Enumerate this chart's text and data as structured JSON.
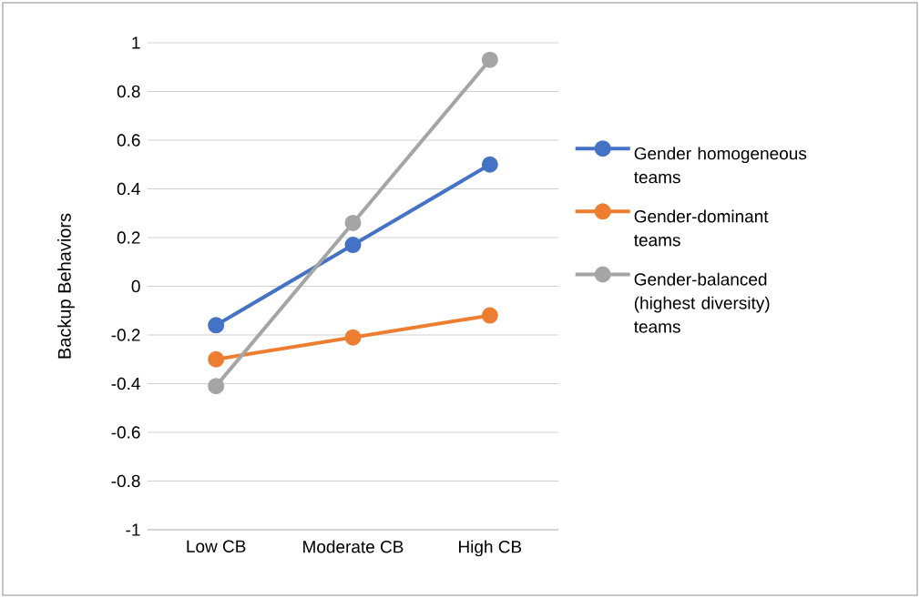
{
  "chart_data": {
    "type": "line",
    "ylabel": "Backup Behaviors",
    "categories": [
      "Low CB",
      "Moderate CB",
      "High CB"
    ],
    "series": [
      {
        "name": "Gender homogeneous teams",
        "color": "#4472c4",
        "values": [
          -0.16,
          0.17,
          0.5
        ]
      },
      {
        "name": "Gender-dominant teams",
        "color": "#ed7d31",
        "values": [
          -0.3,
          -0.21,
          -0.12
        ]
      },
      {
        "name": "Gender-balanced (highest diversity) teams",
        "color": "#a5a5a5",
        "values": [
          -0.41,
          0.26,
          0.93
        ]
      }
    ],
    "ylim": [
      -1,
      1
    ],
    "yticks": [
      -1,
      -0.8,
      -0.6,
      -0.4,
      -0.2,
      0,
      0.2,
      0.4,
      0.6,
      0.8,
      1
    ],
    "grid": "y",
    "legend": "right",
    "marker": "circle",
    "line_style": "solid"
  }
}
